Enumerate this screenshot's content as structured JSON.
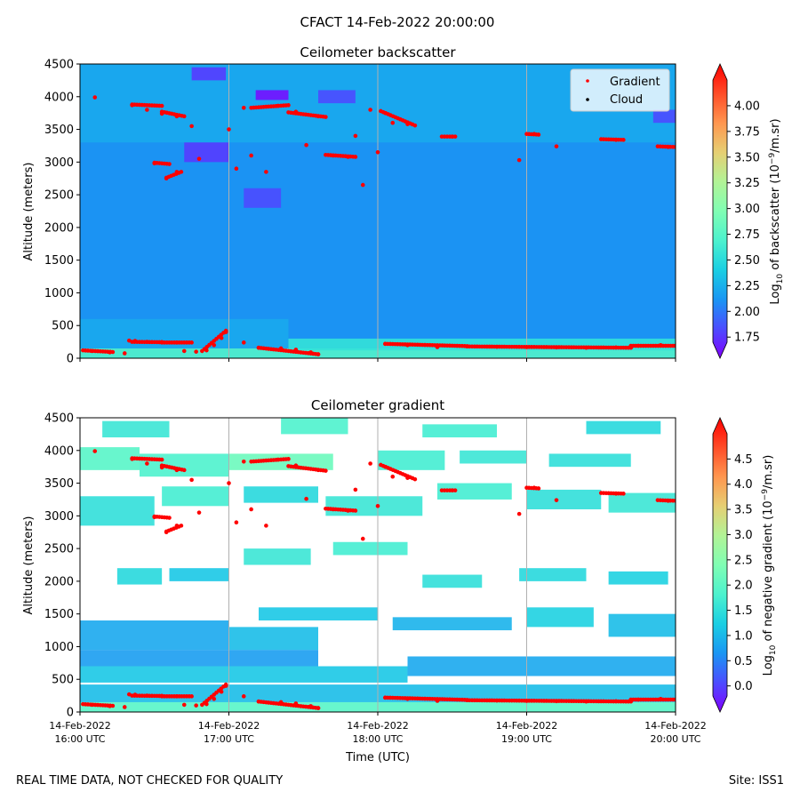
{
  "suptitle": "CFACT 14-Feb-2022 20:00:00",
  "footer": {
    "left": "REAL TIME DATA, NOT CHECKED FOR QUALITY",
    "right": "Site: ISS1"
  },
  "colors": {
    "gradient_points": "#ff0000",
    "cloud_points": "#000000",
    "backscatter_background": "#3a8ef2",
    "gradient_background": "#ffffff",
    "time_grid": "#b0b0b0"
  },
  "legend": {
    "position": "top-right",
    "items": [
      {
        "label": "Gradient",
        "color": "#ff0000",
        "marker": "dot"
      },
      {
        "label": "Cloud",
        "color": "#000000",
        "marker": "dot"
      }
    ]
  },
  "time_axis": {
    "label": "Time (UTC)",
    "range_hours": [
      16,
      20
    ],
    "ticks": [
      {
        "t": 16,
        "date": "14-Feb-2022",
        "time": "16:00 UTC"
      },
      {
        "t": 17,
        "date": "14-Feb-2022",
        "time": "17:00 UTC"
      },
      {
        "t": 18,
        "date": "14-Feb-2022",
        "time": "18:00 UTC"
      },
      {
        "t": 19,
        "date": "14-Feb-2022",
        "time": "19:00 UTC"
      },
      {
        "t": 20,
        "date": "14-Feb-2022",
        "time": "20:00 UTC"
      }
    ]
  },
  "chart_data": [
    {
      "type": "heatmap",
      "id": "backscatter",
      "title": "Ceilometer backscatter",
      "ylabel": "Altitude (meters)",
      "ylim": [
        0,
        4500
      ],
      "yticks": [
        0,
        500,
        1000,
        1500,
        2000,
        2500,
        3000,
        3500,
        4000,
        4500
      ],
      "colorbar": {
        "label_prefix": "Log",
        "label_sub": "10",
        "label_mid": " of backscatter (10",
        "label_sup": "−9",
        "label_suffix": "/m.sr)",
        "range": [
          1.7,
          4.25
        ],
        "ticks": [
          "1.75",
          "2.00",
          "2.25",
          "2.50",
          "2.75",
          "3.00",
          "3.25",
          "3.50",
          "3.75",
          "4.00"
        ],
        "extend": "both",
        "colormap": "rainbow"
      },
      "field": {
        "base_value": 2.2,
        "surface_layer": [
          {
            "t0": 16.0,
            "t1": 20.0,
            "z0": 0,
            "z1": 150,
            "value": 2.75
          },
          {
            "t0": 16.0,
            "t1": 17.4,
            "z0": 150,
            "z1": 600,
            "value": 2.3
          },
          {
            "t0": 17.4,
            "t1": 20.0,
            "z0": 120,
            "z1": 300,
            "value": 2.6
          }
        ],
        "patches": [
          {
            "t0": 16.0,
            "t1": 20.0,
            "z0": 3300,
            "z1": 4500,
            "value": 2.3
          },
          {
            "t0": 16.75,
            "t1": 16.98,
            "z0": 4250,
            "z1": 4450,
            "value": 1.9
          },
          {
            "t0": 17.18,
            "t1": 17.4,
            "z0": 3950,
            "z1": 4100,
            "value": 1.75
          },
          {
            "t0": 16.7,
            "t1": 17.0,
            "z0": 3000,
            "z1": 3300,
            "value": 1.9
          },
          {
            "t0": 17.1,
            "t1": 17.35,
            "z0": 2300,
            "z1": 2600,
            "value": 1.95
          },
          {
            "t0": 17.6,
            "t1": 17.85,
            "z0": 3900,
            "z1": 4100,
            "value": 1.95
          },
          {
            "t0": 19.85,
            "t1": 20.0,
            "z0": 3600,
            "z1": 3800,
            "value": 1.95
          }
        ]
      },
      "gradient_points": [
        {
          "t": 16.08,
          "z": 110
        },
        {
          "t": 16.2,
          "z": 90
        },
        {
          "t": 16.3,
          "z": 75
        },
        {
          "t": 16.33,
          "z": 270
        },
        {
          "t": 16.37,
          "z": 265
        },
        {
          "t": 16.45,
          "z": 250
        },
        {
          "t": 16.55,
          "z": 245
        },
        {
          "t": 16.65,
          "z": 240
        },
        {
          "t": 16.7,
          "z": 110
        },
        {
          "t": 16.78,
          "z": 100
        },
        {
          "t": 16.85,
          "z": 120
        },
        {
          "t": 16.9,
          "z": 200
        },
        {
          "t": 16.95,
          "z": 310
        },
        {
          "t": 16.98,
          "z": 400
        },
        {
          "t": 17.1,
          "z": 240
        },
        {
          "t": 17.2,
          "z": 160
        },
        {
          "t": 17.35,
          "z": 150
        },
        {
          "t": 17.45,
          "z": 130
        },
        {
          "t": 17.55,
          "z": 90
        },
        {
          "t": 17.6,
          "z": 60
        },
        {
          "t": 18.05,
          "z": 220
        },
        {
          "t": 18.2,
          "z": 200
        },
        {
          "t": 18.4,
          "z": 170
        },
        {
          "t": 18.6,
          "z": 180
        },
        {
          "t": 18.8,
          "z": 175
        },
        {
          "t": 19.0,
          "z": 170
        },
        {
          "t": 19.2,
          "z": 165
        },
        {
          "t": 19.4,
          "z": 160
        },
        {
          "t": 19.6,
          "z": 165
        },
        {
          "t": 19.75,
          "z": 190
        },
        {
          "t": 19.9,
          "z": 200
        },
        {
          "t": 20.0,
          "z": 190
        },
        {
          "t": 16.1,
          "z": 3990
        },
        {
          "t": 16.35,
          "z": 3870
        },
        {
          "t": 16.45,
          "z": 3800
        },
        {
          "t": 16.55,
          "z": 3740
        },
        {
          "t": 16.65,
          "z": 3700
        },
        {
          "t": 16.5,
          "z": 2980
        },
        {
          "t": 16.58,
          "z": 2750
        },
        {
          "t": 16.65,
          "z": 2850
        },
        {
          "t": 16.75,
          "z": 3550
        },
        {
          "t": 16.8,
          "z": 3050
        },
        {
          "t": 17.0,
          "z": 3500
        },
        {
          "t": 17.05,
          "z": 2900
        },
        {
          "t": 17.1,
          "z": 3830
        },
        {
          "t": 17.15,
          "z": 3100
        },
        {
          "t": 17.25,
          "z": 2850
        },
        {
          "t": 17.33,
          "z": 3860
        },
        {
          "t": 17.45,
          "z": 3770
        },
        {
          "t": 17.6,
          "z": 3700
        },
        {
          "t": 17.52,
          "z": 3260
        },
        {
          "t": 17.7,
          "z": 3100
        },
        {
          "t": 17.8,
          "z": 3080
        },
        {
          "t": 17.85,
          "z": 3400
        },
        {
          "t": 17.9,
          "z": 2650
        },
        {
          "t": 17.95,
          "z": 3800
        },
        {
          "t": 18.0,
          "z": 3150
        },
        {
          "t": 18.05,
          "z": 3750
        },
        {
          "t": 18.1,
          "z": 3600
        },
        {
          "t": 18.2,
          "z": 3580
        },
        {
          "t": 18.5,
          "z": 3390
        },
        {
          "t": 18.95,
          "z": 3030
        },
        {
          "t": 19.05,
          "z": 3430
        },
        {
          "t": 19.2,
          "z": 3240
        },
        {
          "t": 19.6,
          "z": 3340
        },
        {
          "t": 19.95,
          "z": 3230
        }
      ],
      "gradient_segments": [
        {
          "t0": 16.02,
          "t1": 16.22,
          "z0": 120,
          "z1": 95
        },
        {
          "t0": 16.35,
          "t1": 16.55,
          "z0": 250,
          "z1": 245
        },
        {
          "t0": 16.55,
          "t1": 16.75,
          "z0": 240,
          "z1": 240
        },
        {
          "t0": 16.82,
          "t1": 16.98,
          "z0": 110,
          "z1": 420
        },
        {
          "t0": 17.2,
          "t1": 17.6,
          "z0": 160,
          "z1": 60
        },
        {
          "t0": 18.05,
          "t1": 18.6,
          "z0": 220,
          "z1": 185
        },
        {
          "t0": 18.6,
          "t1": 19.7,
          "z0": 180,
          "z1": 160
        },
        {
          "t0": 19.7,
          "t1": 20.0,
          "z0": 190,
          "z1": 190
        },
        {
          "t0": 16.35,
          "t1": 16.55,
          "z0": 3880,
          "z1": 3860
        },
        {
          "t0": 16.55,
          "t1": 16.7,
          "z0": 3770,
          "z1": 3700
        },
        {
          "t0": 17.15,
          "t1": 17.4,
          "z0": 3830,
          "z1": 3870
        },
        {
          "t0": 17.4,
          "t1": 17.65,
          "z0": 3760,
          "z1": 3690
        },
        {
          "t0": 17.65,
          "t1": 17.85,
          "z0": 3110,
          "z1": 3080
        },
        {
          "t0": 18.02,
          "t1": 18.25,
          "z0": 3780,
          "z1": 3560
        },
        {
          "t0": 16.5,
          "t1": 16.6,
          "z0": 2990,
          "z1": 2970
        },
        {
          "t0": 16.58,
          "t1": 16.68,
          "z0": 2760,
          "z1": 2850
        },
        {
          "t0": 19.0,
          "t1": 19.08,
          "z0": 3430,
          "z1": 3420
        },
        {
          "t0": 19.5,
          "t1": 19.65,
          "z0": 3350,
          "z1": 3340
        },
        {
          "t0": 19.88,
          "t1": 20.0,
          "z0": 3240,
          "z1": 3230
        },
        {
          "t0": 18.43,
          "t1": 18.52,
          "z0": 3390,
          "z1": 3390
        }
      ]
    },
    {
      "type": "heatmap",
      "id": "gradient",
      "title": "Ceilometer gradient",
      "ylabel": "Altitude (meters)",
      "ylim": [
        0,
        4500
      ],
      "yticks": [
        0,
        500,
        1000,
        1500,
        2000,
        2500,
        3000,
        3500,
        4000,
        4500
      ],
      "colorbar": {
        "label_prefix": "Log",
        "label_sub": "10",
        "label_mid": " of negative gradient (10",
        "label_sup": "−9",
        "label_suffix": "/m.sr)",
        "range": [
          -0.2,
          5.0
        ],
        "ticks": [
          "0.0",
          "0.5",
          "1.0",
          "1.5",
          "2.0",
          "2.5",
          "3.0",
          "3.5",
          "4.0",
          "4.5"
        ],
        "extend": "both",
        "colormap": "rainbow"
      },
      "field": {
        "patches": [
          {
            "t0": 16.0,
            "t1": 20.0,
            "z0": 0,
            "z1": 150,
            "value": 2.0
          },
          {
            "t0": 16.0,
            "t1": 20.0,
            "z0": 150,
            "z1": 420,
            "value": 1.2
          },
          {
            "t0": 16.0,
            "t1": 18.2,
            "z0": 450,
            "z1": 700,
            "value": 1.3
          },
          {
            "t0": 16.0,
            "t1": 17.6,
            "z0": 700,
            "z1": 950,
            "value": 0.9
          },
          {
            "t0": 16.0,
            "t1": 17.0,
            "z0": 950,
            "z1": 1400,
            "value": 1.0
          },
          {
            "t0": 17.0,
            "t1": 17.6,
            "z0": 950,
            "z1": 1300,
            "value": 1.2
          },
          {
            "t0": 18.2,
            "t1": 20.0,
            "z0": 550,
            "z1": 850,
            "value": 1.0
          },
          {
            "t0": 17.2,
            "t1": 18.0,
            "z0": 1400,
            "z1": 1600,
            "value": 1.3
          },
          {
            "t0": 18.1,
            "t1": 18.9,
            "z0": 1250,
            "z1": 1450,
            "value": 1.1
          },
          {
            "t0": 19.0,
            "t1": 19.45,
            "z0": 1300,
            "z1": 1600,
            "value": 1.4
          },
          {
            "t0": 19.55,
            "t1": 20.0,
            "z0": 1150,
            "z1": 1500,
            "value": 1.2
          },
          {
            "t0": 16.25,
            "t1": 16.55,
            "z0": 1950,
            "z1": 2200,
            "value": 1.5
          },
          {
            "t0": 16.6,
            "t1": 17.0,
            "z0": 2000,
            "z1": 2200,
            "value": 1.3
          },
          {
            "t0": 17.1,
            "t1": 17.55,
            "z0": 2250,
            "z1": 2500,
            "value": 1.7
          },
          {
            "t0": 17.7,
            "t1": 18.2,
            "z0": 2400,
            "z1": 2600,
            "value": 1.8
          },
          {
            "t0": 18.3,
            "t1": 18.7,
            "z0": 1900,
            "z1": 2100,
            "value": 1.6
          },
          {
            "t0": 18.95,
            "t1": 19.4,
            "z0": 2000,
            "z1": 2200,
            "value": 1.5
          },
          {
            "t0": 19.55,
            "t1": 19.95,
            "z0": 1950,
            "z1": 2150,
            "value": 1.4
          },
          {
            "t0": 16.0,
            "t1": 16.5,
            "z0": 2850,
            "z1": 3300,
            "value": 1.6
          },
          {
            "t0": 16.55,
            "t1": 17.0,
            "z0": 3150,
            "z1": 3450,
            "value": 1.8
          },
          {
            "t0": 17.1,
            "t1": 17.6,
            "z0": 3200,
            "z1": 3450,
            "value": 1.5
          },
          {
            "t0": 17.65,
            "t1": 18.3,
            "z0": 3000,
            "z1": 3300,
            "value": 1.7
          },
          {
            "t0": 18.4,
            "t1": 18.9,
            "z0": 3250,
            "z1": 3500,
            "value": 1.8
          },
          {
            "t0": 19.0,
            "t1": 19.5,
            "z0": 3100,
            "z1": 3400,
            "value": 1.6
          },
          {
            "t0": 19.55,
            "t1": 20.0,
            "z0": 3050,
            "z1": 3350,
            "value": 1.7
          },
          {
            "t0": 16.0,
            "t1": 16.4,
            "z0": 3700,
            "z1": 4050,
            "value": 2.0
          },
          {
            "t0": 16.4,
            "t1": 17.0,
            "z0": 3600,
            "z1": 3950,
            "value": 1.9
          },
          {
            "t0": 17.0,
            "t1": 17.7,
            "z0": 3700,
            "z1": 3950,
            "value": 2.2
          },
          {
            "t0": 18.0,
            "t1": 18.45,
            "z0": 3700,
            "z1": 4000,
            "value": 1.8
          },
          {
            "t0": 18.55,
            "t1": 19.0,
            "z0": 3800,
            "z1": 4000,
            "value": 1.7
          },
          {
            "t0": 19.15,
            "t1": 19.7,
            "z0": 3750,
            "z1": 3950,
            "value": 1.6
          },
          {
            "t0": 16.15,
            "t1": 16.6,
            "z0": 4200,
            "z1": 4450,
            "value": 1.7
          },
          {
            "t0": 17.35,
            "t1": 17.8,
            "z0": 4250,
            "z1": 4500,
            "value": 1.9
          },
          {
            "t0": 18.3,
            "t1": 18.8,
            "z0": 4200,
            "z1": 4400,
            "value": 1.8
          },
          {
            "t0": 19.4,
            "t1": 19.9,
            "z0": 4250,
            "z1": 4450,
            "value": 1.5
          }
        ]
      },
      "reuse_points_from": "backscatter"
    }
  ]
}
